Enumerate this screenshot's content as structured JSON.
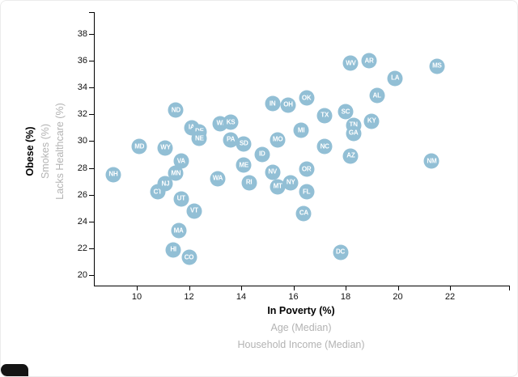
{
  "y_axis_options": [
    {
      "label": "Obese (%)",
      "active": true
    },
    {
      "label": "Smokes (%)",
      "active": false
    },
    {
      "label": "Lacks Healthcare (%)",
      "active": false
    }
  ],
  "x_axis_options": [
    {
      "label": "In Poverty (%)",
      "active": true
    },
    {
      "label": "Age (Median)",
      "active": false
    },
    {
      "label": "Household Income (Median)",
      "active": false
    }
  ],
  "colors": {
    "point_fill": "#92bfd5",
    "point_label": "#ffffff",
    "active_axis_label": "#000000",
    "inactive_axis_label": "#b3b3b3",
    "axis_line": "#000000"
  },
  "chart_data": {
    "type": "scatter",
    "title": "",
    "xlabel": "In Poverty (%)",
    "ylabel": "Obese (%)",
    "xlim": [
      9,
      23
    ],
    "ylim": [
      20,
      39
    ],
    "grid": false,
    "legend": "none",
    "x_ticks": [
      10,
      12,
      14,
      16,
      18,
      20,
      22
    ],
    "y_ticks": [
      20,
      22,
      24,
      26,
      28,
      30,
      32,
      34,
      36,
      38
    ],
    "points": [
      {
        "label": "NH",
        "x": 9.1,
        "y": 27.5
      },
      {
        "label": "MD",
        "x": 10.1,
        "y": 29.6
      },
      {
        "label": "CT",
        "x": 10.8,
        "y": 26.2
      },
      {
        "label": "WY",
        "x": 11.1,
        "y": 29.5
      },
      {
        "label": "NJ",
        "x": 11.1,
        "y": 26.8
      },
      {
        "label": "HI",
        "x": 11.4,
        "y": 21.9
      },
      {
        "label": "ND",
        "x": 11.5,
        "y": 32.3
      },
      {
        "label": "MN",
        "x": 11.5,
        "y": 27.6
      },
      {
        "label": "MA",
        "x": 11.6,
        "y": 23.3
      },
      {
        "label": "VA",
        "x": 11.7,
        "y": 28.5
      },
      {
        "label": "UT",
        "x": 11.7,
        "y": 25.7
      },
      {
        "label": "CO",
        "x": 12.0,
        "y": 21.3
      },
      {
        "label": "IA",
        "x": 12.1,
        "y": 31.0
      },
      {
        "label": "VT",
        "x": 12.2,
        "y": 24.8
      },
      {
        "label": "DE",
        "x": 12.4,
        "y": 30.7
      },
      {
        "label": "NE",
        "x": 12.4,
        "y": 30.2
      },
      {
        "label": "WA",
        "x": 13.1,
        "y": 27.2
      },
      {
        "label": "WI",
        "x": 13.2,
        "y": 31.3
      },
      {
        "label": "KS",
        "x": 13.6,
        "y": 31.4
      },
      {
        "label": "PA",
        "x": 13.6,
        "y": 30.1
      },
      {
        "label": "SD",
        "x": 14.1,
        "y": 29.8
      },
      {
        "label": "ME",
        "x": 14.1,
        "y": 28.2
      },
      {
        "label": "RI",
        "x": 14.3,
        "y": 26.9
      },
      {
        "label": "ID",
        "x": 14.8,
        "y": 29.0
      },
      {
        "label": "IN",
        "x": 15.2,
        "y": 32.8
      },
      {
        "label": "NV",
        "x": 15.2,
        "y": 27.7
      },
      {
        "label": "MO",
        "x": 15.4,
        "y": 30.1
      },
      {
        "label": "MT",
        "x": 15.4,
        "y": 26.6
      },
      {
        "label": "OH",
        "x": 15.8,
        "y": 32.7
      },
      {
        "label": "NY",
        "x": 15.9,
        "y": 26.9
      },
      {
        "label": "MI",
        "x": 16.3,
        "y": 30.8
      },
      {
        "label": "CA",
        "x": 16.4,
        "y": 24.6
      },
      {
        "label": "OK",
        "x": 16.5,
        "y": 33.2
      },
      {
        "label": "OR",
        "x": 16.5,
        "y": 27.9
      },
      {
        "label": "FL",
        "x": 16.5,
        "y": 26.2
      },
      {
        "label": "NC",
        "x": 17.2,
        "y": 29.6
      },
      {
        "label": "TX",
        "x": 17.2,
        "y": 31.9
      },
      {
        "label": "DC",
        "x": 17.8,
        "y": 21.7
      },
      {
        "label": "SC",
        "x": 18.0,
        "y": 32.2
      },
      {
        "label": "WV",
        "x": 18.2,
        "y": 35.8
      },
      {
        "label": "AZ",
        "x": 18.2,
        "y": 28.9
      },
      {
        "label": "TN",
        "x": 18.3,
        "y": 31.2
      },
      {
        "label": "GA",
        "x": 18.3,
        "y": 30.6
      },
      {
        "label": "AR",
        "x": 18.9,
        "y": 36.0
      },
      {
        "label": "KY",
        "x": 19.0,
        "y": 31.5
      },
      {
        "label": "AL",
        "x": 19.2,
        "y": 33.4
      },
      {
        "label": "LA",
        "x": 19.9,
        "y": 34.7
      },
      {
        "label": "NM",
        "x": 21.3,
        "y": 28.5
      },
      {
        "label": "MS",
        "x": 21.5,
        "y": 35.6
      }
    ]
  }
}
